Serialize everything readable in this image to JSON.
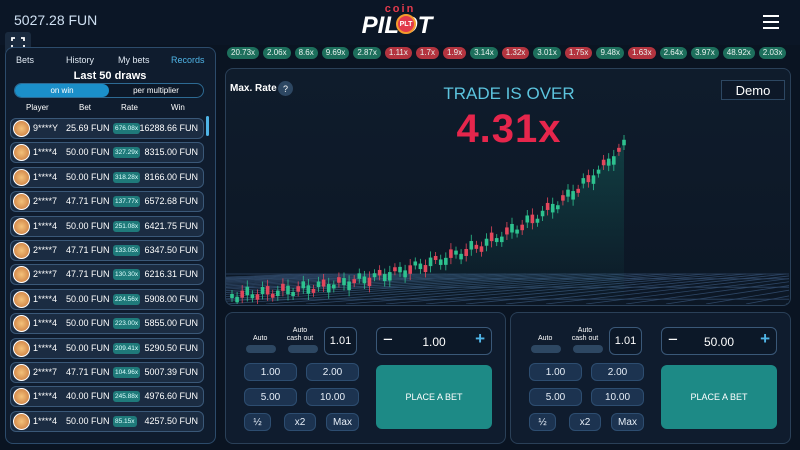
{
  "header": {
    "balance": "5027.28 FUN",
    "logo": {
      "top": "coin",
      "main": "PILOT",
      "badge": "PLT"
    }
  },
  "history": [
    {
      "label": "20.73x",
      "color": "#1d6f5c"
    },
    {
      "label": "2.06x",
      "color": "#1d6f5c"
    },
    {
      "label": "8.6x",
      "color": "#1d6f5c"
    },
    {
      "label": "9.69x",
      "color": "#1d6f5c"
    },
    {
      "label": "2.87x",
      "color": "#1d6f5c"
    },
    {
      "label": "1.11x",
      "color": "#b3343f"
    },
    {
      "label": "1.7x",
      "color": "#b3343f"
    },
    {
      "label": "1.9x",
      "color": "#b3343f"
    },
    {
      "label": "3.14x",
      "color": "#1d6f5c"
    },
    {
      "label": "1.32x",
      "color": "#b3343f"
    },
    {
      "label": "3.01x",
      "color": "#1d6f5c"
    },
    {
      "label": "1.75x",
      "color": "#b3343f"
    },
    {
      "label": "9.48x",
      "color": "#1d6f5c"
    },
    {
      "label": "1.63x",
      "color": "#b3343f"
    },
    {
      "label": "2.64x",
      "color": "#1d6f5c"
    },
    {
      "label": "3.97x",
      "color": "#1d6f5c"
    },
    {
      "label": "48.92x",
      "color": "#1d6f5c"
    },
    {
      "label": "2.03x",
      "color": "#1d6f5c"
    }
  ],
  "sidebar": {
    "tabs": [
      "Bets",
      "History",
      "My bets",
      "Records"
    ],
    "active_tab": 3,
    "title": "Last 50 draws",
    "toggle": [
      "on win",
      "per multiplier"
    ],
    "columns": [
      "Player",
      "Bet",
      "Rate",
      "Win"
    ],
    "rows": [
      [
        "9****Y",
        "25.69 FUN",
        "676.08x",
        "16288.66 FUN"
      ],
      [
        "1****4",
        "50.00 FUN",
        "327.29x",
        "8315.00 FUN"
      ],
      [
        "1****4",
        "50.00 FUN",
        "318.28x",
        "8166.00 FUN"
      ],
      [
        "2****7",
        "47.71 FUN",
        "137.77x",
        "6572.68 FUN"
      ],
      [
        "1****4",
        "50.00 FUN",
        "251.08x",
        "6421.75 FUN"
      ],
      [
        "2****7",
        "47.71 FUN",
        "133.05x",
        "6347.50 FUN"
      ],
      [
        "2****7",
        "47.71 FUN",
        "130.30x",
        "6216.31 FUN"
      ],
      [
        "1****4",
        "50.00 FUN",
        "224.56x",
        "5908.00 FUN"
      ],
      [
        "1****4",
        "50.00 FUN",
        "223.00x",
        "5855.00 FUN"
      ],
      [
        "1****4",
        "50.00 FUN",
        "209.41x",
        "5290.50 FUN"
      ],
      [
        "2****7",
        "47.71 FUN",
        "104.96x",
        "5007.39 FUN"
      ],
      [
        "1****4",
        "40.00 FUN",
        "245.88x",
        "4976.60 FUN"
      ],
      [
        "1****4",
        "50.00 FUN",
        "85.15x",
        "4257.50 FUN"
      ]
    ]
  },
  "game": {
    "max_rate": "Max. Rate",
    "help": "?",
    "status": "TRADE IS OVER",
    "multiplier": "4.31x",
    "mode": "Demo"
  },
  "bet_panels": [
    {
      "auto": "Auto",
      "auto_cash_out": "Auto cash out",
      "cash_out_value": "1.01",
      "minus": "−",
      "amount": "1.00",
      "plus": "+",
      "quick": [
        "1.00",
        "2.00",
        "5.00",
        "10.00"
      ],
      "actions": [
        "½",
        "x2",
        "Max"
      ],
      "button": "PLACE A BET"
    },
    {
      "auto": "Auto",
      "auto_cash_out": "Auto cash out",
      "cash_out_value": "1.01",
      "minus": "−",
      "amount": "50.00",
      "plus": "+",
      "quick": [
        "1.00",
        "2.00",
        "5.00",
        "10.00"
      ],
      "actions": [
        "½",
        "x2",
        "Max"
      ],
      "button": "PLACE A BET"
    }
  ]
}
